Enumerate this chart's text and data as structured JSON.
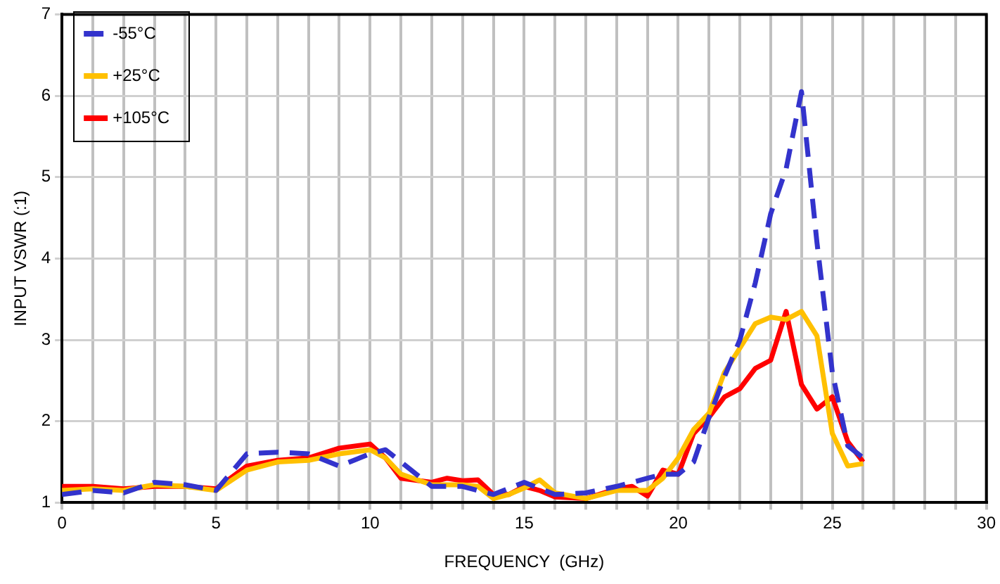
{
  "chart_data": {
    "type": "line",
    "xlabel": "FREQUENCY  (GHz)",
    "ylabel": "INPUT VSWR (:1)",
    "xlim": [
      0,
      30
    ],
    "ylim": [
      1,
      7
    ],
    "xticks": [
      0,
      {
        "value": 1,
        "label": null
      },
      {
        "value": 2,
        "label": null
      },
      {
        "value": 3,
        "label": null
      },
      {
        "value": 4,
        "label": null
      },
      5,
      {
        "value": 6,
        "label": null
      },
      {
        "value": 7,
        "label": null
      },
      {
        "value": 8,
        "label": null
      },
      {
        "value": 9,
        "label": null
      },
      10,
      {
        "value": 11,
        "label": null
      },
      {
        "value": 12,
        "label": null
      },
      {
        "value": 13,
        "label": null
      },
      {
        "value": 14,
        "label": null
      },
      15,
      {
        "value": 16,
        "label": null
      },
      {
        "value": 17,
        "label": null
      },
      {
        "value": 18,
        "label": null
      },
      {
        "value": 19,
        "label": null
      },
      20,
      {
        "value": 21,
        "label": null
      },
      {
        "value": 22,
        "label": null
      },
      {
        "value": 23,
        "label": null
      },
      {
        "value": 24,
        "label": null
      },
      25,
      {
        "value": 26,
        "label": null
      },
      {
        "value": 27,
        "label": null
      },
      {
        "value": 28,
        "label": null
      },
      {
        "value": 29,
        "label": null
      },
      30
    ],
    "yticks": [
      1,
      2,
      3,
      4,
      5,
      6,
      7
    ],
    "grid": true,
    "legend": "top left",
    "marker": "none",
    "series": [
      {
        "name": "-55°C",
        "color": "#3333cc",
        "line_style": "dashed",
        "x": [
          0,
          1,
          2,
          3,
          4,
          5,
          6,
          7,
          8,
          9,
          10,
          10.5,
          11,
          12,
          13,
          14,
          15,
          16,
          17,
          18,
          19,
          19.5,
          20,
          20.5,
          21,
          21.5,
          22,
          22.5,
          23,
          23.5,
          24,
          24.5,
          25,
          25.5,
          26
        ],
        "values": [
          1.1,
          1.15,
          1.12,
          1.25,
          1.22,
          1.15,
          1.6,
          1.62,
          1.6,
          1.45,
          1.6,
          1.65,
          1.5,
          1.2,
          1.2,
          1.1,
          1.25,
          1.1,
          1.12,
          1.2,
          1.3,
          1.35,
          1.35,
          1.5,
          2.05,
          2.55,
          3.0,
          3.7,
          4.55,
          5.1,
          6.05,
          4.2,
          2.6,
          1.7,
          1.55
        ]
      },
      {
        "name": "+25°C",
        "color": "#ffc000",
        "line_style": "solid",
        "x": [
          0,
          1,
          2,
          3,
          4,
          5,
          6,
          7,
          8,
          9,
          10,
          10.5,
          11,
          12,
          13,
          13.5,
          14,
          14.5,
          15,
          15.5,
          16,
          17,
          18,
          19,
          19.5,
          20,
          20.5,
          21,
          21.5,
          22,
          22.5,
          23,
          23.5,
          24,
          24.5,
          25,
          25.5,
          26
        ],
        "values": [
          1.15,
          1.17,
          1.15,
          1.22,
          1.2,
          1.15,
          1.4,
          1.5,
          1.52,
          1.6,
          1.65,
          1.55,
          1.35,
          1.22,
          1.22,
          1.2,
          1.05,
          1.1,
          1.18,
          1.28,
          1.12,
          1.05,
          1.15,
          1.15,
          1.3,
          1.55,
          1.9,
          2.1,
          2.6,
          2.9,
          3.2,
          3.28,
          3.25,
          3.35,
          3.05,
          1.85,
          1.45,
          1.48
        ]
      },
      {
        "name": "+105°C",
        "color": "#ff0000",
        "line_style": "solid",
        "x": [
          0,
          1,
          2,
          3,
          4,
          5,
          6,
          7,
          8,
          9,
          10,
          10.5,
          11,
          12,
          12.5,
          13,
          13.5,
          14,
          14.5,
          15,
          15.5,
          16,
          17,
          18,
          18.5,
          19,
          19.5,
          20,
          20.5,
          21,
          21.5,
          22,
          22.5,
          23,
          23.5,
          24,
          24.5,
          25,
          25.5,
          26
        ],
        "values": [
          1.2,
          1.2,
          1.17,
          1.2,
          1.2,
          1.17,
          1.45,
          1.52,
          1.55,
          1.67,
          1.72,
          1.55,
          1.3,
          1.25,
          1.3,
          1.27,
          1.28,
          1.1,
          1.1,
          1.2,
          1.15,
          1.07,
          1.05,
          1.17,
          1.2,
          1.08,
          1.4,
          1.35,
          1.85,
          2.05,
          2.3,
          2.4,
          2.65,
          2.75,
          3.35,
          2.45,
          2.15,
          2.3,
          1.75,
          1.5
        ]
      }
    ]
  }
}
